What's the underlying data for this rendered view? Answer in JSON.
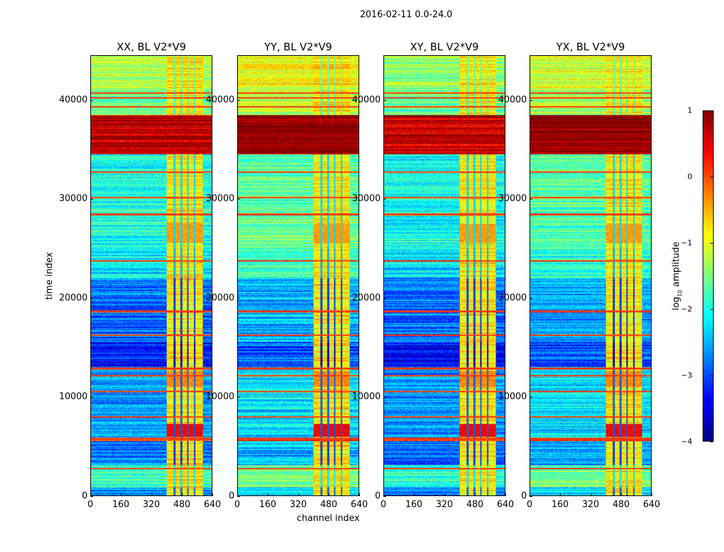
{
  "chart_data": {
    "type": "heatmap",
    "title": "2016-02-11 0.0-24.0",
    "xlabel": "channel index",
    "ylabel": "time index",
    "xlim": [
      0,
      640
    ],
    "ylim": [
      0,
      44500
    ],
    "xticks": [
      "0",
      "160",
      "320",
      "480",
      "640"
    ],
    "xtick_values": [
      0,
      160,
      320,
      480,
      640
    ],
    "yticks": [
      "0",
      "10000",
      "20000",
      "30000",
      "40000"
    ],
    "ytick_values": [
      0,
      10000,
      20000,
      30000,
      40000
    ],
    "colorbar": {
      "label": "log10 amplitude",
      "label_main": "log",
      "label_sub": "10",
      "label_rest": " amplitude",
      "range": [
        -4,
        1
      ],
      "ticks": [
        "1",
        "0",
        "−1",
        "−2",
        "−3",
        "−4"
      ],
      "tick_values": [
        1,
        0,
        -1,
        -2,
        -3,
        -4
      ],
      "colormap": "jet"
    },
    "panels": [
      {
        "title": "XX, BL V2*V9",
        "offset": 0.0
      },
      {
        "title": "YY, BL V2*V9",
        "offset": 0.35
      },
      {
        "title": "XY, BL V2*V9",
        "offset": -0.05
      },
      {
        "title": "YX, BL V2*V9",
        "offset": 0.3
      }
    ],
    "time_bands": [
      {
        "start": 0,
        "end": 800,
        "value": -2.6
      },
      {
        "start": 800,
        "end": 3000,
        "value": -1.9
      },
      {
        "start": 3000,
        "end": 5500,
        "value": -2.8
      },
      {
        "start": 5500,
        "end": 5800,
        "value": 0.2
      },
      {
        "start": 5800,
        "end": 13000,
        "value": -2.6
      },
      {
        "start": 13000,
        "end": 15500,
        "value": -3.3
      },
      {
        "start": 15500,
        "end": 22000,
        "value": -2.8
      },
      {
        "start": 22000,
        "end": 25000,
        "value": -2.2
      },
      {
        "start": 25000,
        "end": 34500,
        "value": -2.0
      },
      {
        "start": 34500,
        "end": 38500,
        "value": 0.7
      },
      {
        "start": 38500,
        "end": 41000,
        "value": -1.6
      },
      {
        "start": 41000,
        "end": 44500,
        "value": -1.3
      }
    ],
    "lines": [
      2700,
      5700,
      7900,
      10500,
      12100,
      12800,
      16200,
      18600,
      23700,
      28400,
      30100,
      32700,
      39300,
      40200,
      40700
    ],
    "hot_channels": {
      "start": 400,
      "end": 590,
      "value": -0.8,
      "gaps": [
        440,
        476,
        512,
        548
      ]
    },
    "hot_spots": [
      {
        "start": 5900,
        "end": 7200,
        "value": 0.4
      },
      {
        "start": 11000,
        "end": 12600,
        "value": -0.3
      },
      {
        "start": 25500,
        "end": 27500,
        "value": -0.4
      }
    ]
  }
}
